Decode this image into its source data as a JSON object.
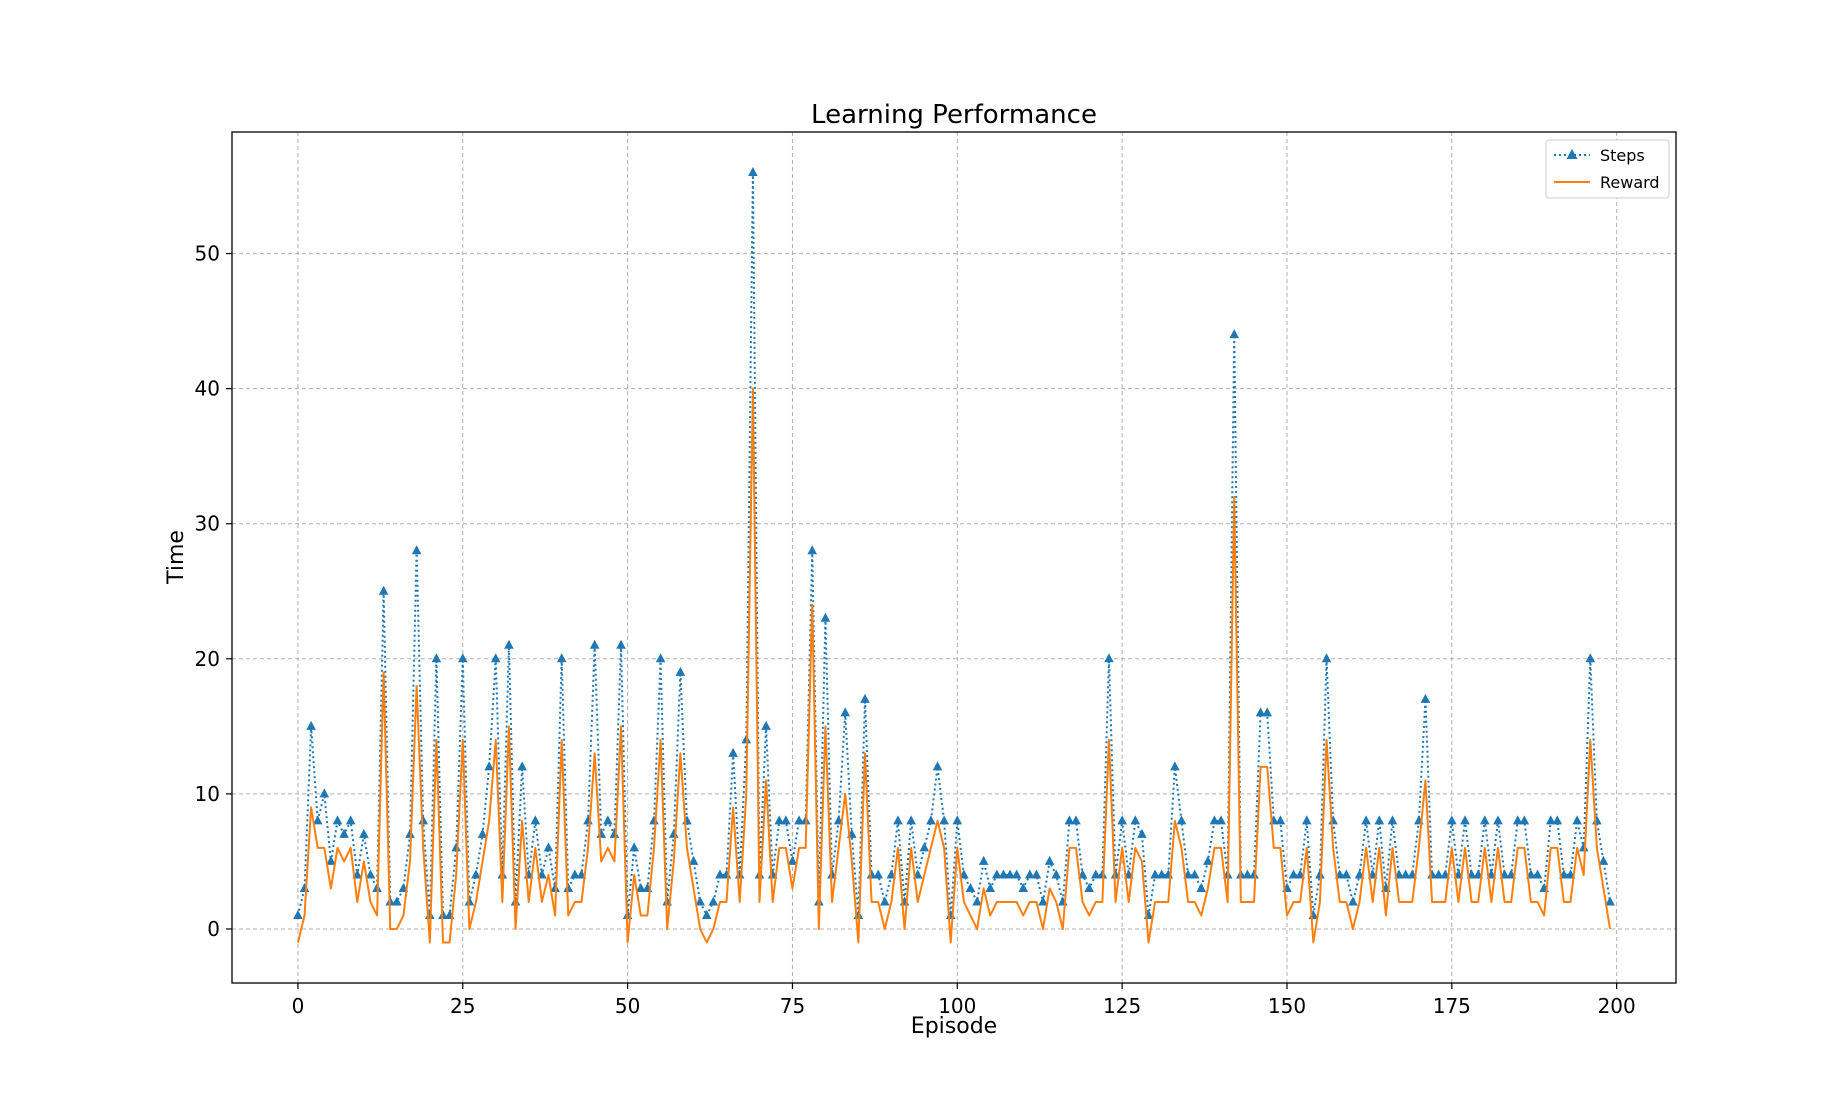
{
  "chart_data": {
    "type": "line",
    "title": "Learning Performance",
    "xlabel": "Episode",
    "ylabel": "Time",
    "xlim": [
      -10,
      209
    ],
    "ylim": [
      -4,
      59
    ],
    "xticks": [
      0,
      25,
      50,
      75,
      100,
      125,
      150,
      175,
      200
    ],
    "yticks": [
      0,
      10,
      20,
      30,
      40,
      50
    ],
    "grid": true,
    "legend_position": "top-right",
    "series": [
      {
        "name": "Steps",
        "color": "#1f77b4",
        "style": "dotted",
        "marker": "triangle-up",
        "x_start": 0,
        "values": [
          1,
          3,
          15,
          8,
          10,
          5,
          8,
          7,
          8,
          4,
          7,
          4,
          3,
          25,
          2,
          2,
          3,
          7,
          28,
          8,
          1,
          20,
          1,
          1,
          6,
          20,
          2,
          4,
          7,
          12,
          20,
          4,
          21,
          2,
          12,
          4,
          8,
          4,
          6,
          3,
          20,
          3,
          4,
          4,
          8,
          21,
          7,
          8,
          7,
          21,
          1,
          6,
          3,
          3,
          8,
          20,
          2,
          7,
          19,
          8,
          5,
          2,
          1,
          2,
          4,
          4,
          13,
          4,
          14,
          56,
          4,
          15,
          4,
          8,
          8,
          5,
          8,
          8,
          28,
          2,
          23,
          4,
          8,
          16,
          7,
          1,
          17,
          4,
          4,
          2,
          4,
          8,
          2,
          8,
          4,
          6,
          8,
          12,
          8,
          1,
          8,
          4,
          3,
          2,
          5,
          3,
          4,
          4,
          4,
          4,
          3,
          4,
          4,
          2,
          5,
          4,
          2,
          8,
          8,
          4,
          3,
          4,
          4,
          20,
          4,
          8,
          4,
          8,
          7,
          1,
          4,
          4,
          4,
          12,
          8,
          4,
          4,
          3,
          5,
          8,
          8,
          4,
          44,
          4,
          4,
          4,
          16,
          16,
          8,
          8,
          3,
          4,
          4,
          8,
          1,
          4,
          20,
          8,
          4,
          4,
          2,
          4,
          8,
          4,
          8,
          3,
          8,
          4,
          4,
          4,
          8,
          17,
          4,
          4,
          4,
          8,
          4,
          8,
          4,
          4,
          8,
          4,
          8,
          4,
          4,
          8,
          8,
          4,
          4,
          3,
          8,
          8,
          4,
          4,
          8,
          6,
          20,
          8,
          5,
          2
        ]
      },
      {
        "name": "Reward",
        "color": "#ff7f0e",
        "style": "solid",
        "marker": "none",
        "x_start": 0,
        "values": [
          -1,
          1,
          9,
          6,
          6,
          3,
          6,
          5,
          6,
          2,
          5,
          2,
          1,
          19,
          0,
          0,
          1,
          5,
          18,
          6,
          -1,
          14,
          -1,
          -1,
          4,
          14,
          0,
          2,
          5,
          8,
          14,
          2,
          15,
          0,
          8,
          2,
          6,
          2,
          4,
          1,
          14,
          1,
          2,
          2,
          6,
          13,
          5,
          6,
          5,
          15,
          -1,
          4,
          1,
          1,
          6,
          14,
          0,
          5,
          13,
          6,
          3,
          0,
          -1,
          0,
          2,
          2,
          9,
          2,
          10,
          40,
          2,
          11,
          2,
          6,
          6,
          3,
          6,
          6,
          24,
          0,
          15,
          2,
          6,
          10,
          5,
          -1,
          13,
          2,
          2,
          0,
          2,
          6,
          0,
          6,
          2,
          4,
          6,
          8,
          6,
          -1,
          6,
          2,
          1,
          0,
          3,
          1,
          2,
          2,
          2,
          2,
          1,
          2,
          2,
          0,
          3,
          2,
          0,
          6,
          6,
          2,
          1,
          2,
          2,
          14,
          2,
          6,
          2,
          6,
          5,
          -1,
          2,
          2,
          2,
          8,
          6,
          2,
          2,
          1,
          3,
          6,
          6,
          2,
          32,
          2,
          2,
          2,
          12,
          12,
          6,
          6,
          1,
          2,
          2,
          6,
          -1,
          2,
          14,
          6,
          2,
          2,
          0,
          2,
          6,
          2,
          6,
          1,
          6,
          2,
          2,
          2,
          6,
          11,
          2,
          2,
          2,
          6,
          2,
          6,
          2,
          2,
          6,
          2,
          6,
          2,
          2,
          6,
          6,
          2,
          2,
          1,
          6,
          6,
          2,
          2,
          6,
          4,
          14,
          6,
          3,
          0
        ]
      }
    ]
  }
}
